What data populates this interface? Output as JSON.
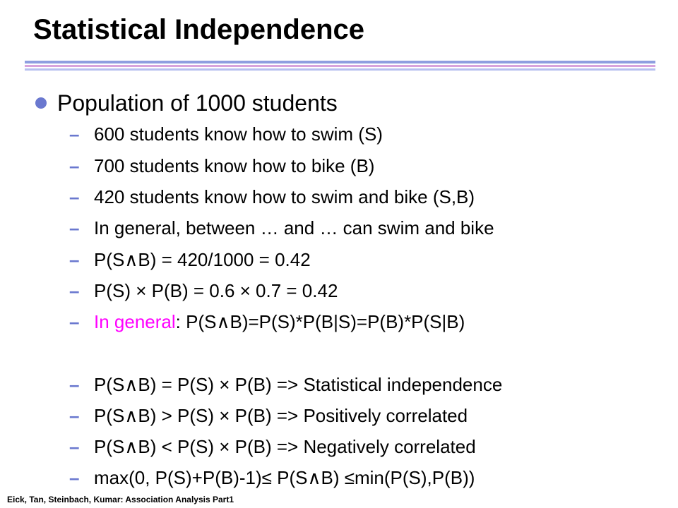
{
  "slide": {
    "title": "Statistical Independence",
    "bullet": "Population of 1000 students",
    "items": [
      "600 students know how to swim (S)",
      "700 students know how to bike (B)",
      "420 students know how to swim and bike (S,B)",
      "In general, between … and … can swim and bike",
      "P(S∧B) = 420/1000 = 0.42",
      "P(S) × P(B) = 0.6 × 0.7 = 0.42",
      "P(S∧B)=P(S)*P(B|S)=P(B)*P(S|B)",
      "P(S∧B) = P(S) × P(B) => Statistical independence",
      "P(S∧B) > P(S) × P(B) => Positively correlated",
      "P(S∧B) < P(S) × P(B) => Negatively correlated",
      "max(0, P(S)+P(B)-1)≤ P(S∧B) ≤min(P(S),P(B))"
    ],
    "highlight_prefix": "In general",
    "highlight_sep": ": ",
    "dash": "–",
    "footer": "Eick, Tan, Steinbach, Kumar: Association Analysis Part1"
  },
  "colors": {
    "accent": "#6a78cf",
    "highlight": "#ff00ff"
  }
}
